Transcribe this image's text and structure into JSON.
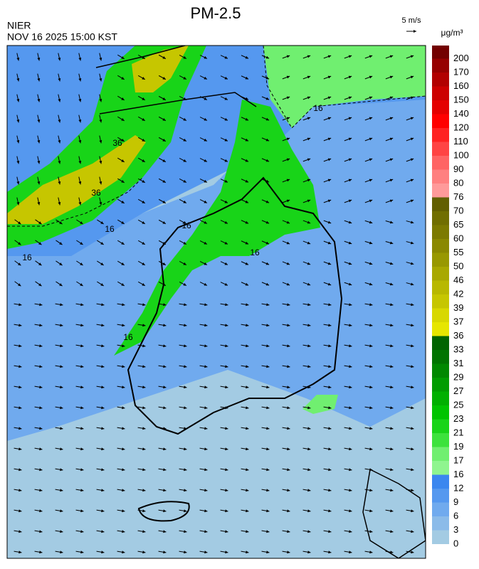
{
  "header": {
    "title": "PM-2.5",
    "agency": "NIER",
    "timestamp": "NOV 16 2025 15:00 KST",
    "wind_scale": "5 m/s",
    "unit": "μg/m³"
  },
  "map": {
    "contour_labels": [
      "16",
      "16",
      "16",
      "16",
      "16",
      "36",
      "36",
      "16"
    ]
  },
  "colorbar": {
    "levels": [
      0,
      3,
      6,
      9,
      12,
      16,
      17,
      19,
      21,
      23,
      25,
      27,
      29,
      31,
      33,
      36,
      37,
      39,
      42,
      46,
      50,
      55,
      60,
      65,
      70,
      76,
      80,
      90,
      100,
      110,
      120,
      140,
      150,
      160,
      170,
      200
    ],
    "colors": [
      "#a3cbe3",
      "#8bbbe9",
      "#70aaee",
      "#5598ef",
      "#3b87ef",
      "#8ff58f",
      "#70ef70",
      "#3ce23c",
      "#18d418",
      "#00c400",
      "#00b000",
      "#009c00",
      "#008800",
      "#007400",
      "#006400",
      "#e6e600",
      "#d8d800",
      "#c6c600",
      "#b8b800",
      "#a8a800",
      "#989800",
      "#8a8800",
      "#7c7a00",
      "#706e00",
      "#625f00",
      "#ff9a9a",
      "#ff8080",
      "#ff6464",
      "#ff4444",
      "#ff2222",
      "#ff0000",
      "#e40000",
      "#cc0000",
      "#b20000",
      "#960000",
      "#730000"
    ]
  }
}
